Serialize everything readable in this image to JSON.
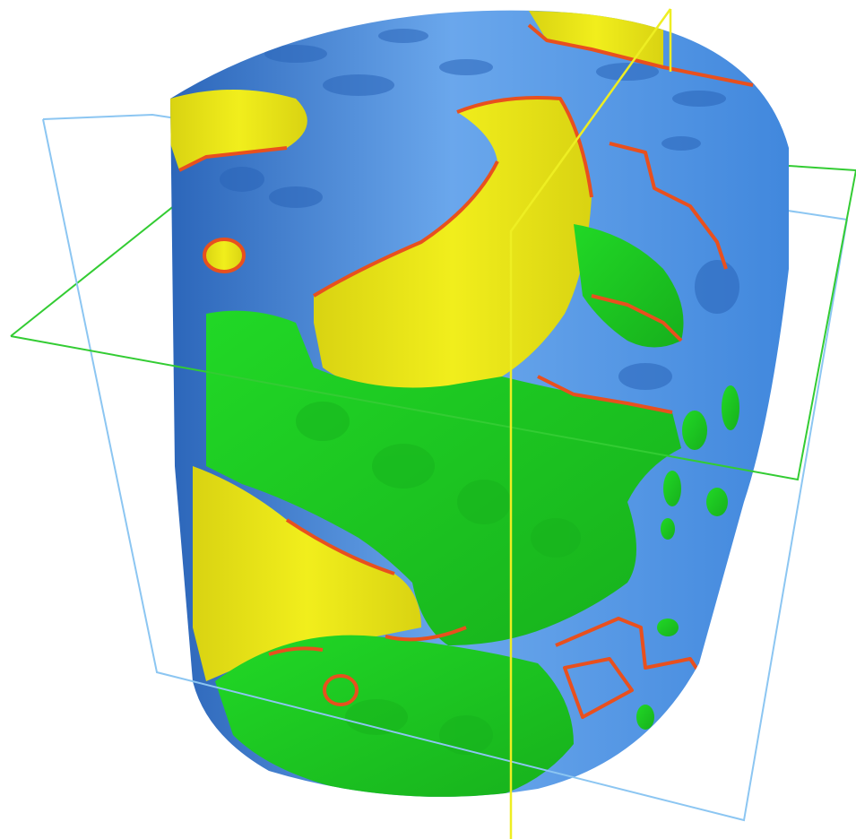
{
  "colors": {
    "background": "#ffffff",
    "solid_phase": "#3f86dc",
    "solid_phase_light": "#6aa7ec",
    "solid_phase_dark": "#2a64b8",
    "fluid_phase_a": "#f1ee1c",
    "fluid_phase_a_dark": "#d9d312",
    "fluid_phase_b": "#21d826",
    "fluid_phase_b_dark": "#17b01c",
    "interface_outline": "#e8501e",
    "slice_plane_xz": "#8cc6f2",
    "slice_plane_xy": "#33cc33",
    "slice_plane_yz": "#eeee22"
  },
  "scene": {
    "object": "cylindrical-sample-render",
    "slice_planes": [
      "xz-plane",
      "xy-plane",
      "yz-plane"
    ]
  }
}
